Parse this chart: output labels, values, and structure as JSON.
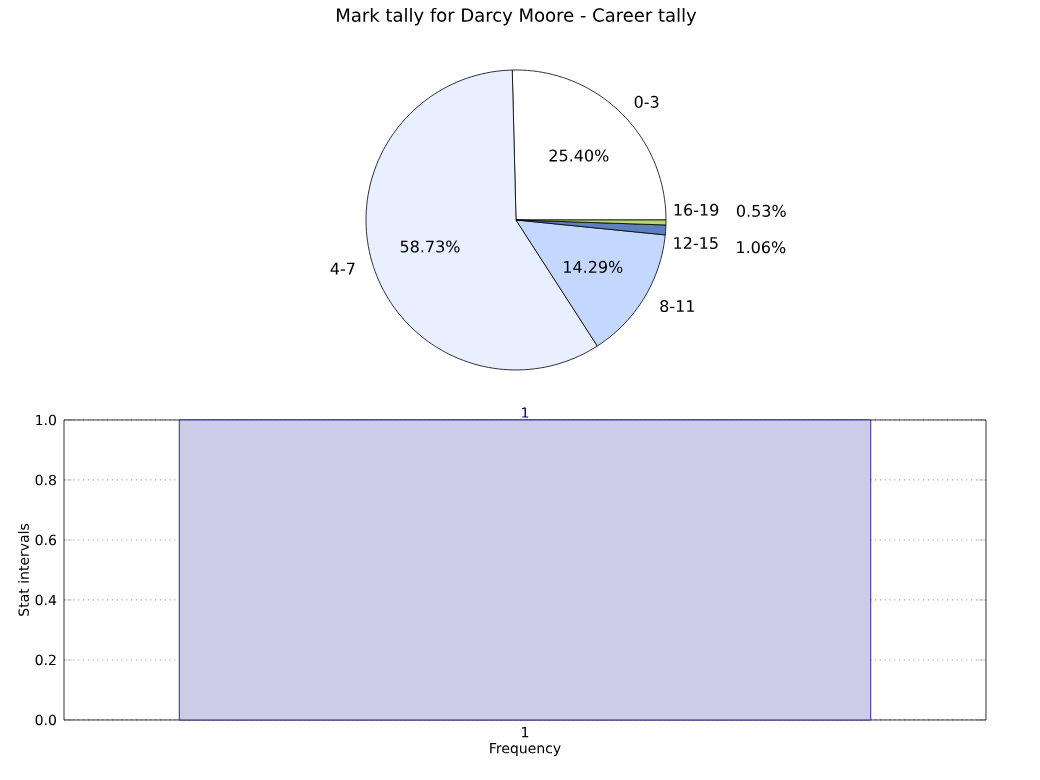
{
  "chart_data": [
    {
      "type": "pie",
      "title": "Mark tally for Darcy Moore - Career tally",
      "categories": [
        "0-3",
        "4-7",
        "8-11",
        "12-15",
        "16-19"
      ],
      "values": [
        25.4,
        58.73,
        14.29,
        1.06,
        0.53
      ],
      "value_labels": [
        "25.40%",
        "58.73%",
        "14.29%",
        "1.06%",
        "0.53%"
      ],
      "colors": [
        "#ffffff",
        "#e8f0ff",
        "#c4d8ff",
        "#5f7fbf",
        "#b8d86b"
      ]
    },
    {
      "type": "bar",
      "xlabel": "Frequency",
      "ylabel": "Stat intervals",
      "categories": [
        "1"
      ],
      "values": [
        1
      ],
      "value_labels": [
        "1"
      ],
      "color": "#cccce6",
      "ylim": [
        0,
        1
      ],
      "yticks": [
        {
          "value": 0,
          "label": "0.0"
        },
        {
          "value": 0.2,
          "label": "0.2"
        },
        {
          "value": 0.4,
          "label": "0.4"
        },
        {
          "value": 0.6,
          "label": "0.6"
        },
        {
          "value": 0.8,
          "label": "0.8"
        },
        {
          "value": 1,
          "label": "1.0"
        }
      ],
      "grid": true
    }
  ]
}
